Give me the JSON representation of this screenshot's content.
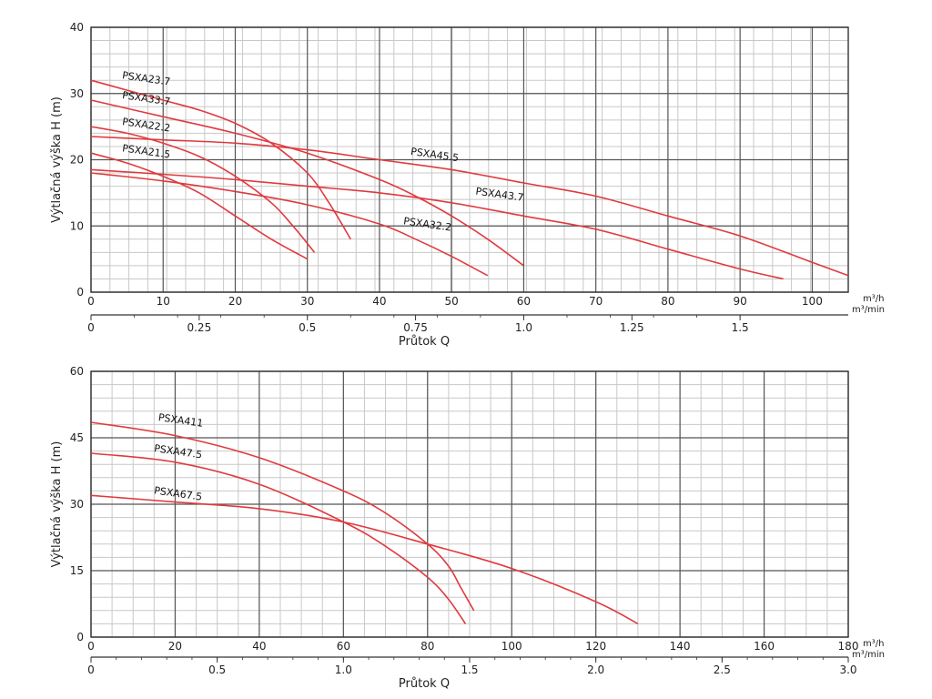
{
  "colors": {
    "curve": "#e03a3e",
    "grid_major": "#555555",
    "grid_minor": "#c8c8c8",
    "axis": "#333333"
  },
  "chart_data": [
    {
      "type": "line",
      "ylabel": "Výtlačná výška H (m)",
      "xlabel": "Průtok Q",
      "x_unit": "m³/h",
      "x2_unit": "m³/min",
      "xlim": [
        0,
        105
      ],
      "ylim": [
        0,
        40
      ],
      "x_ticks": [
        "0",
        "10",
        "20",
        "30",
        "40",
        "50",
        "60",
        "70",
        "80",
        "90",
        "100"
      ],
      "y_ticks": [
        "0",
        "10",
        "20",
        "30",
        "40"
      ],
      "x2_ticks": [
        "0",
        "0.25",
        "0.5",
        "0.75",
        "1.0",
        "1.25",
        "1.5"
      ],
      "grid": true,
      "series": [
        {
          "name": "PSXA23.7",
          "x": [
            0,
            5,
            10,
            15,
            20,
            25,
            30,
            33,
            36
          ],
          "y": [
            32,
            30.5,
            29,
            27.5,
            25.5,
            22.5,
            18,
            13.5,
            8
          ]
        },
        {
          "name": "PSXA33.7",
          "x": [
            0,
            10,
            20,
            30,
            40,
            45,
            50,
            55,
            60
          ],
          "y": [
            29,
            26.5,
            24,
            21,
            17,
            14.5,
            11.5,
            8,
            4
          ]
        },
        {
          "name": "PSXA22.2",
          "x": [
            0,
            5,
            10,
            15,
            20,
            25,
            28,
            31
          ],
          "y": [
            25,
            24,
            22.5,
            20.5,
            17.5,
            13.5,
            10,
            6
          ]
        },
        {
          "name": "PSXA21.5",
          "x": [
            0,
            5,
            10,
            15,
            20,
            25,
            30
          ],
          "y": [
            21,
            19.5,
            17.5,
            15,
            11.5,
            8,
            5
          ]
        },
        {
          "name": "PSXA45.5",
          "x": [
            0,
            10,
            20,
            30,
            40,
            50,
            60,
            70,
            80,
            90,
            100,
            105
          ],
          "y": [
            23.5,
            23,
            22.5,
            21.5,
            20,
            18.5,
            16.5,
            14.5,
            11.5,
            8.5,
            4.5,
            2.5
          ]
        },
        {
          "name": "PSXA43.7",
          "x": [
            0,
            10,
            20,
            30,
            40,
            50,
            60,
            70,
            80,
            90,
            96
          ],
          "y": [
            18.5,
            17.8,
            17,
            16,
            15,
            13.5,
            11.5,
            9.5,
            6.5,
            3.5,
            2
          ]
        },
        {
          "name": "PSXA32.2",
          "x": [
            0,
            10,
            20,
            30,
            40,
            45,
            50,
            55
          ],
          "y": [
            18,
            16.8,
            15.2,
            13.2,
            10.3,
            8,
            5.4,
            2.5
          ]
        }
      ]
    },
    {
      "type": "line",
      "ylabel": "Výtlačná výška H (m)",
      "xlabel": "Průtok Q",
      "x_unit": "m³/h",
      "x2_unit": "m³/min",
      "xlim": [
        0,
        180
      ],
      "ylim": [
        0,
        60
      ],
      "x_ticks": [
        "0",
        "20",
        "40",
        "60",
        "80",
        "100",
        "120",
        "140",
        "160",
        "180"
      ],
      "y_ticks": [
        "0",
        "15",
        "30",
        "45",
        "60"
      ],
      "x2_ticks": [
        "0",
        "0.5",
        "1.0",
        "1.5",
        "2.0",
        "2.5",
        "3.0"
      ],
      "grid": true,
      "series": [
        {
          "name": "PSXA411",
          "x": [
            0,
            20,
            40,
            60,
            70,
            80,
            85,
            88,
            91
          ],
          "y": [
            48.5,
            45.5,
            40.5,
            33,
            28,
            21,
            16,
            11,
            6
          ]
        },
        {
          "name": "PSXA47.5",
          "x": [
            0,
            20,
            40,
            60,
            70,
            80,
            85,
            89
          ],
          "y": [
            41.5,
            39.5,
            34.5,
            26,
            20.5,
            13.5,
            8.5,
            3
          ]
        },
        {
          "name": "PSXA67.5",
          "x": [
            0,
            20,
            40,
            60,
            80,
            100,
            120,
            130
          ],
          "y": [
            32,
            30.5,
            29,
            26,
            21,
            15.5,
            8,
            3
          ]
        }
      ]
    }
  ]
}
